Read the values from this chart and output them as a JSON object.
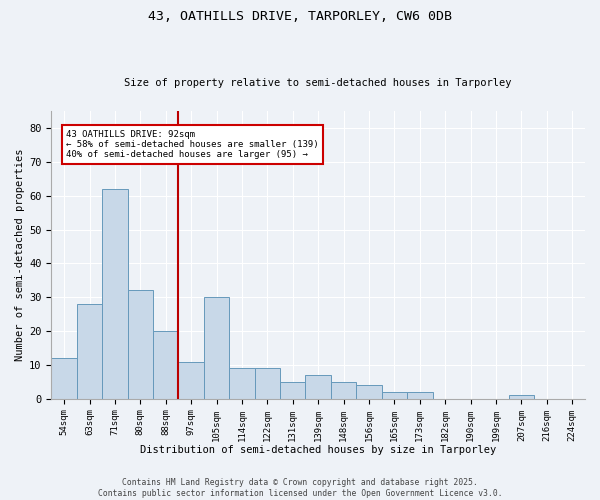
{
  "title1": "43, OATHILLS DRIVE, TARPORLEY, CW6 0DB",
  "title2": "Size of property relative to semi-detached houses in Tarporley",
  "xlabel": "Distribution of semi-detached houses by size in Tarporley",
  "ylabel": "Number of semi-detached properties",
  "categories": [
    "54sqm",
    "63sqm",
    "71sqm",
    "80sqm",
    "88sqm",
    "97sqm",
    "105sqm",
    "114sqm",
    "122sqm",
    "131sqm",
    "139sqm",
    "148sqm",
    "156sqm",
    "165sqm",
    "173sqm",
    "182sqm",
    "190sqm",
    "199sqm",
    "207sqm",
    "216sqm",
    "224sqm"
  ],
  "values": [
    12,
    28,
    62,
    32,
    20,
    11,
    30,
    9,
    9,
    5,
    7,
    5,
    4,
    2,
    2,
    0,
    0,
    0,
    1,
    0,
    0
  ],
  "bar_color": "#c8d8e8",
  "bar_edge_color": "#6699bb",
  "red_line_x": 4.5,
  "annotation_title": "43 OATHILLS DRIVE: 92sqm",
  "annotation_line1": "← 58% of semi-detached houses are smaller (139)",
  "annotation_line2": "40% of semi-detached houses are larger (95) →",
  "annotation_box_color": "#ffffff",
  "annotation_box_edge": "#cc0000",
  "ylim": [
    0,
    85
  ],
  "yticks": [
    0,
    10,
    20,
    30,
    40,
    50,
    60,
    70,
    80
  ],
  "footer1": "Contains HM Land Registry data © Crown copyright and database right 2025.",
  "footer2": "Contains public sector information licensed under the Open Government Licence v3.0.",
  "bg_color": "#eef2f7",
  "grid_color": "#ffffff"
}
